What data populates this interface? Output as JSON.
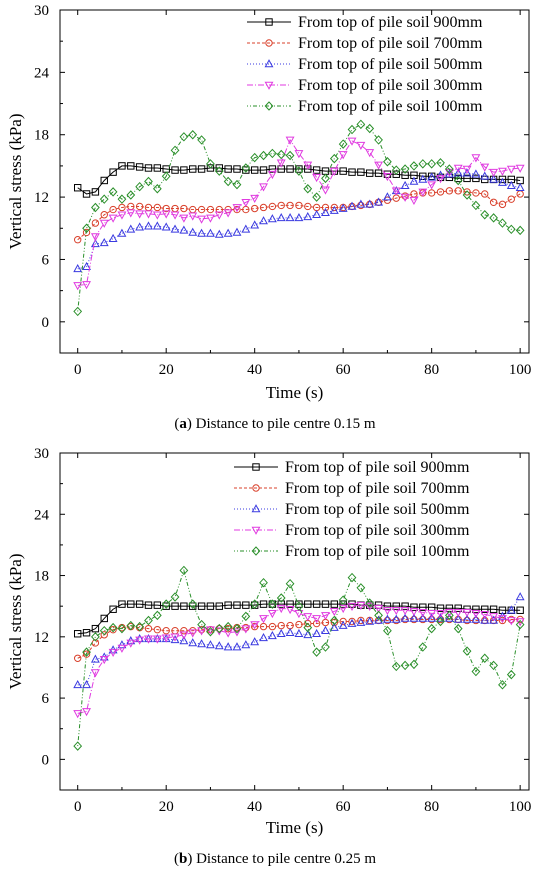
{
  "chart_data": [
    {
      "type": "line",
      "caption": {
        "prefix": "(",
        "letter": "a",
        "text": ") Distance to pile centre 0.15 m"
      },
      "xlabel": "Time (s)",
      "ylabel": "Vertical stress (kPa)",
      "xlim": [
        -4,
        102
      ],
      "ylim": [
        -3,
        30
      ],
      "xticks": [
        0,
        20,
        40,
        60,
        80,
        100
      ],
      "yticks": [
        0,
        6,
        12,
        18,
        24,
        30
      ],
      "grid": false,
      "legend_position": "top-right",
      "x": [
        0,
        2,
        4,
        6,
        8,
        10,
        12,
        14,
        16,
        18,
        20,
        22,
        24,
        26,
        28,
        30,
        32,
        34,
        36,
        38,
        40,
        42,
        44,
        46,
        48,
        50,
        52,
        54,
        56,
        58,
        60,
        62,
        64,
        66,
        68,
        70,
        72,
        74,
        76,
        78,
        80,
        82,
        84,
        86,
        88,
        90,
        92,
        94,
        96,
        98,
        100
      ],
      "series": [
        {
          "name": "From top of pile soil 900mm",
          "marker": "square",
          "color": "#000000",
          "dash": "",
          "values": [
            12.9,
            12.3,
            12.5,
            13.6,
            14.4,
            15.0,
            15.0,
            14.9,
            14.8,
            14.8,
            14.7,
            14.6,
            14.6,
            14.7,
            14.7,
            14.8,
            14.8,
            14.7,
            14.7,
            14.6,
            14.6,
            14.6,
            14.7,
            14.7,
            14.7,
            14.7,
            14.7,
            14.6,
            14.5,
            14.5,
            14.5,
            14.4,
            14.4,
            14.3,
            14.3,
            14.2,
            14.2,
            14.1,
            14.1,
            14.0,
            14.0,
            13.9,
            13.9,
            13.8,
            13.8,
            13.8,
            13.7,
            13.7,
            13.7,
            13.7,
            13.6
          ]
        },
        {
          "name": "From top of pile soil 700mm",
          "marker": "circle",
          "color": "#d9402b",
          "dash": "3,2",
          "values": [
            7.9,
            8.6,
            9.5,
            10.3,
            10.8,
            11.0,
            11.1,
            11.1,
            11.0,
            11.0,
            10.9,
            10.9,
            10.9,
            10.8,
            10.8,
            10.8,
            10.8,
            10.8,
            10.8,
            10.8,
            10.9,
            11.0,
            11.1,
            11.2,
            11.2,
            11.2,
            11.1,
            11.0,
            11.0,
            11.0,
            11.0,
            11.1,
            11.2,
            11.3,
            11.5,
            11.7,
            11.9,
            12.1,
            12.3,
            12.4,
            12.4,
            12.5,
            12.6,
            12.6,
            12.5,
            12.4,
            12.3,
            11.5,
            11.3,
            11.8,
            12.3
          ]
        },
        {
          "name": "From top of pile soil 500mm",
          "marker": "triangle-up",
          "color": "#3a3ae0",
          "dash": "1,2",
          "values": [
            5.1,
            5.3,
            7.5,
            7.6,
            8.0,
            8.5,
            8.9,
            9.1,
            9.2,
            9.2,
            9.1,
            8.9,
            8.8,
            8.6,
            8.5,
            8.5,
            8.4,
            8.5,
            8.6,
            8.9,
            9.3,
            9.7,
            9.9,
            10.0,
            10.0,
            10.0,
            10.1,
            10.3,
            10.5,
            10.7,
            10.9,
            11.1,
            11.3,
            11.3,
            11.5,
            12.0,
            12.6,
            13.1,
            13.5,
            13.7,
            13.9,
            14.1,
            14.2,
            14.3,
            14.3,
            14.2,
            14.0,
            13.7,
            13.4,
            13.1,
            12.9
          ]
        },
        {
          "name": "From top of pile soil 300mm",
          "marker": "triangle-down",
          "color": "#e03ae0",
          "dash": "6,2,1,2",
          "values": [
            3.5,
            3.6,
            8.2,
            9.5,
            10.0,
            10.3,
            10.5,
            10.4,
            10.4,
            10.3,
            10.4,
            10.3,
            10.0,
            10.2,
            9.9,
            10.0,
            10.3,
            10.5,
            11.0,
            11.5,
            11.9,
            13.0,
            14.2,
            15.3,
            17.5,
            16.2,
            15.1,
            13.9,
            12.7,
            14.5,
            16.1,
            17.4,
            17.0,
            16.3,
            15.1,
            14.0,
            12.6,
            12.0,
            11.7,
            12.5,
            13.2,
            13.8,
            14.4,
            14.8,
            14.7,
            15.8,
            14.9,
            14.4,
            14.5,
            14.7,
            14.8
          ]
        },
        {
          "name": "From top of pile soil 100mm",
          "marker": "diamond",
          "color": "#2a8f2a",
          "dash": "1,2,1,2,4,2",
          "values": [
            1.0,
            9.0,
            11.0,
            11.8,
            12.5,
            11.8,
            12.2,
            13.0,
            13.5,
            12.8,
            14.0,
            16.5,
            17.8,
            18.0,
            17.5,
            15.2,
            14.5,
            13.5,
            13.2,
            14.8,
            15.8,
            16.0,
            16.2,
            16.1,
            16.0,
            14.5,
            12.8,
            12.0,
            13.8,
            15.7,
            17.1,
            18.5,
            19.0,
            18.6,
            17.5,
            15.4,
            14.6,
            14.7,
            15.0,
            15.2,
            15.2,
            15.3,
            14.7,
            13.6,
            12.2,
            11.2,
            10.3,
            10.0,
            9.5,
            8.9,
            8.8
          ]
        }
      ]
    },
    {
      "type": "line",
      "caption": {
        "prefix": "(",
        "letter": "b",
        "text": ") Distance to pile centre 0.25 m"
      },
      "xlabel": "Time (s)",
      "ylabel": "Vertical stress (kPa)",
      "xlim": [
        -4,
        102
      ],
      "ylim": [
        -3,
        30
      ],
      "xticks": [
        0,
        20,
        40,
        60,
        80,
        100
      ],
      "yticks": [
        0,
        6,
        12,
        18,
        24,
        30
      ],
      "grid": false,
      "legend_position": "top-right",
      "x": [
        0,
        2,
        4,
        6,
        8,
        10,
        12,
        14,
        16,
        18,
        20,
        22,
        24,
        26,
        28,
        30,
        32,
        34,
        36,
        38,
        40,
        42,
        44,
        46,
        48,
        50,
        52,
        54,
        56,
        58,
        60,
        62,
        64,
        66,
        68,
        70,
        72,
        74,
        76,
        78,
        80,
        82,
        84,
        86,
        88,
        90,
        92,
        94,
        96,
        98,
        100
      ],
      "series": [
        {
          "name": "From top of pile soil 900mm",
          "marker": "square",
          "color": "#000000",
          "dash": "",
          "values": [
            12.3,
            12.4,
            12.8,
            13.8,
            14.7,
            15.2,
            15.2,
            15.2,
            15.1,
            15.1,
            15.0,
            15.0,
            15.0,
            15.0,
            15.0,
            15.0,
            15.0,
            15.1,
            15.1,
            15.1,
            15.1,
            15.2,
            15.2,
            15.2,
            15.2,
            15.2,
            15.2,
            15.2,
            15.2,
            15.2,
            15.2,
            15.2,
            15.1,
            15.1,
            15.1,
            15.0,
            15.0,
            15.0,
            14.9,
            14.9,
            14.9,
            14.8,
            14.8,
            14.8,
            14.7,
            14.7,
            14.7,
            14.7,
            14.6,
            14.6,
            14.6
          ]
        },
        {
          "name": "From top of pile soil 700mm",
          "marker": "circle",
          "color": "#d9402b",
          "dash": "3,2",
          "values": [
            9.9,
            10.3,
            11.4,
            12.2,
            12.7,
            12.9,
            13.0,
            12.9,
            12.8,
            12.7,
            12.6,
            12.6,
            12.6,
            12.6,
            12.7,
            12.7,
            12.8,
            12.8,
            12.9,
            12.9,
            13.0,
            13.0,
            13.0,
            13.1,
            13.1,
            13.2,
            13.3,
            13.3,
            13.4,
            13.4,
            13.5,
            13.5,
            13.6,
            13.6,
            13.6,
            13.6,
            13.6,
            13.7,
            13.7,
            13.7,
            13.7,
            13.7,
            13.7,
            13.7,
            13.6,
            13.6,
            13.6,
            13.6,
            13.6,
            13.7,
            13.7
          ]
        },
        {
          "name": "From top of pile soil 500mm",
          "marker": "triangle-up",
          "color": "#3a3ae0",
          "dash": "1,2",
          "values": [
            7.3,
            7.3,
            9.8,
            10.0,
            10.7,
            11.2,
            11.6,
            11.8,
            11.8,
            11.8,
            11.8,
            11.7,
            11.6,
            11.4,
            11.3,
            11.2,
            11.1,
            11.0,
            11.0,
            11.2,
            11.5,
            11.9,
            12.1,
            12.3,
            12.4,
            12.3,
            12.2,
            12.3,
            12.6,
            12.9,
            13.1,
            13.3,
            13.4,
            13.5,
            13.6,
            13.7,
            13.7,
            13.8,
            13.8,
            13.8,
            13.8,
            13.8,
            13.8,
            13.7,
            13.7,
            13.7,
            13.6,
            13.6,
            14.0,
            14.6,
            15.9
          ]
        },
        {
          "name": "From top of pile soil 300mm",
          "marker": "triangle-down",
          "color": "#e03ae0",
          "dash": "6,2,1,2",
          "values": [
            4.5,
            4.7,
            8.5,
            9.8,
            10.5,
            10.9,
            11.4,
            11.7,
            11.8,
            11.8,
            11.9,
            12.0,
            12.2,
            12.4,
            12.6,
            12.7,
            12.6,
            12.4,
            12.5,
            12.8,
            13.2,
            13.8,
            14.3,
            14.8,
            14.7,
            14.3,
            14.0,
            13.8,
            14.1,
            14.5,
            14.8,
            15.0,
            15.1,
            15.0,
            14.8,
            14.6,
            14.6,
            14.6,
            14.5,
            14.4,
            14.3,
            14.3,
            14.4,
            14.4,
            14.4,
            14.3,
            14.2,
            14.0,
            13.8,
            13.6,
            13.5
          ]
        },
        {
          "name": "From top of pile soil 100mm",
          "marker": "diamond",
          "color": "#2a8f2a",
          "dash": "1,2,1,2,4,2",
          "values": [
            1.3,
            10.5,
            12.0,
            12.6,
            12.9,
            12.8,
            13.1,
            13.0,
            13.6,
            14.1,
            15.2,
            15.9,
            18.5,
            15.2,
            13.2,
            12.5,
            12.8,
            13.0,
            12.8,
            14.0,
            15.2,
            17.3,
            15.2,
            15.8,
            17.2,
            15.0,
            12.9,
            10.5,
            11.0,
            13.6,
            15.6,
            17.8,
            16.8,
            15.3,
            14.1,
            12.6,
            9.1,
            9.2,
            9.3,
            11.0,
            12.8,
            13.5,
            14.1,
            12.8,
            10.6,
            8.6,
            9.9,
            9.2,
            7.3,
            8.3,
            13.2
          ]
        }
      ]
    }
  ]
}
